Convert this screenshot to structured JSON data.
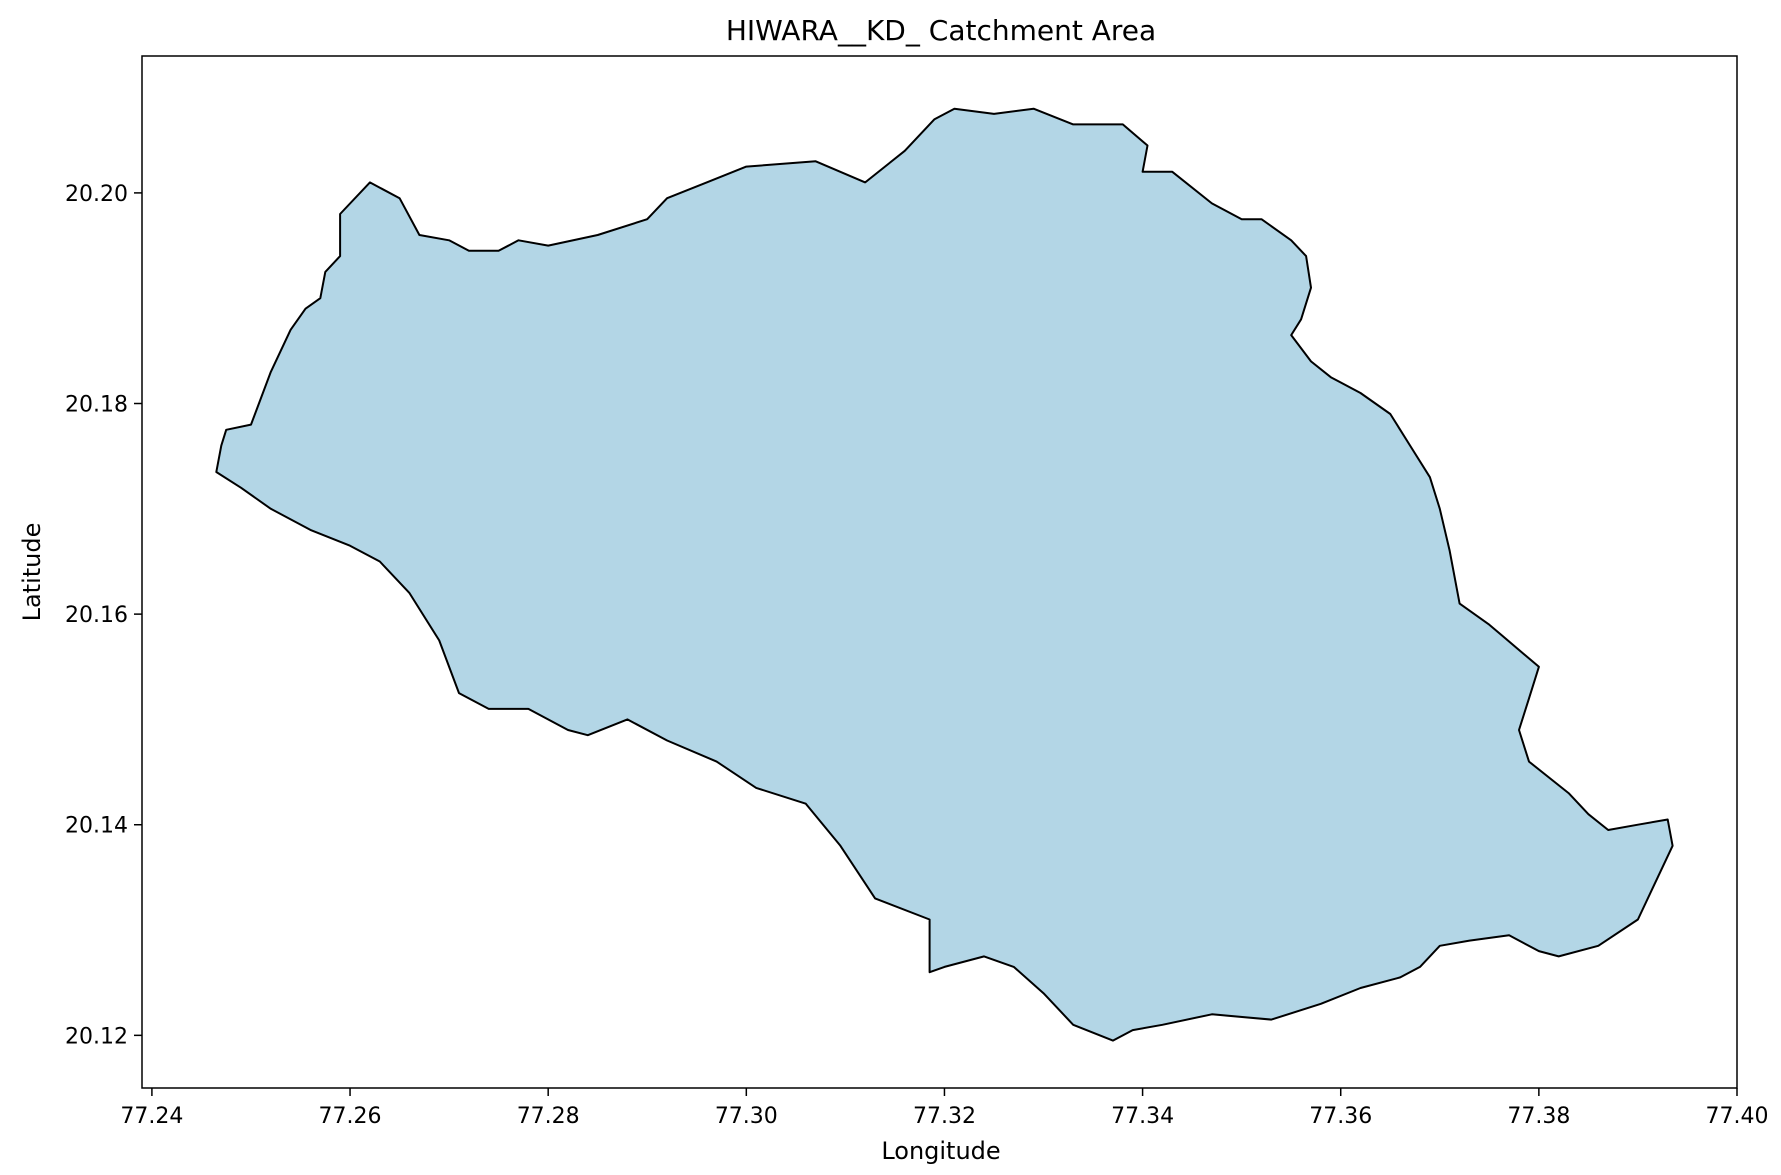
{
  "chart_data": {
    "type": "area",
    "title": "HIWARA__KD_ Catchment Area",
    "xlabel": "Longitude",
    "ylabel": "Latitude",
    "xlim": [
      77.239,
      77.4
    ],
    "ylim": [
      20.115,
      20.213
    ],
    "x_ticks": [
      77.24,
      77.26,
      77.28,
      77.3,
      77.32,
      77.34,
      77.36,
      77.38,
      77.4
    ],
    "x_tick_labels": [
      "77.24",
      "77.26",
      "77.28",
      "77.30",
      "77.32",
      "77.34",
      "77.36",
      "77.38",
      "77.40"
    ],
    "y_ticks": [
      20.12,
      20.14,
      20.16,
      20.18,
      20.2
    ],
    "y_tick_labels": [
      "20.12",
      "20.14",
      "20.16",
      "20.18",
      "20.20"
    ],
    "grid": false,
    "fill_color": "#b3d6e6",
    "edge_color": "#000000",
    "polygon": [
      [
        77.2475,
        20.1775
      ],
      [
        77.25,
        20.178
      ],
      [
        77.252,
        20.183
      ],
      [
        77.254,
        20.187
      ],
      [
        77.2555,
        20.189
      ],
      [
        77.257,
        20.19
      ],
      [
        77.2575,
        20.1925
      ],
      [
        77.259,
        20.194
      ],
      [
        77.259,
        20.198
      ],
      [
        77.262,
        20.201
      ],
      [
        77.265,
        20.1995
      ],
      [
        77.267,
        20.196
      ],
      [
        77.27,
        20.1955
      ],
      [
        77.272,
        20.1945
      ],
      [
        77.275,
        20.1945
      ],
      [
        77.277,
        20.1955
      ],
      [
        77.28,
        20.195
      ],
      [
        77.285,
        20.196
      ],
      [
        77.29,
        20.1975
      ],
      [
        77.292,
        20.1995
      ],
      [
        77.296,
        20.201
      ],
      [
        77.3,
        20.2025
      ],
      [
        77.307,
        20.203
      ],
      [
        77.312,
        20.201
      ],
      [
        77.316,
        20.204
      ],
      [
        77.319,
        20.207
      ],
      [
        77.321,
        20.208
      ],
      [
        77.325,
        20.2075
      ],
      [
        77.329,
        20.208
      ],
      [
        77.333,
        20.2065
      ],
      [
        77.338,
        20.2065
      ],
      [
        77.3405,
        20.2045
      ],
      [
        77.34,
        20.202
      ],
      [
        77.343,
        20.202
      ],
      [
        77.347,
        20.199
      ],
      [
        77.35,
        20.1975
      ],
      [
        77.352,
        20.1975
      ],
      [
        77.355,
        20.1955
      ],
      [
        77.3565,
        20.194
      ],
      [
        77.357,
        20.191
      ],
      [
        77.356,
        20.188
      ],
      [
        77.355,
        20.1865
      ],
      [
        77.357,
        20.184
      ],
      [
        77.359,
        20.1825
      ],
      [
        77.362,
        20.181
      ],
      [
        77.365,
        20.179
      ],
      [
        77.367,
        20.176
      ],
      [
        77.369,
        20.173
      ],
      [
        77.37,
        20.17
      ],
      [
        77.371,
        20.166
      ],
      [
        77.372,
        20.161
      ],
      [
        77.375,
        20.159
      ],
      [
        77.38,
        20.155
      ],
      [
        77.379,
        20.152
      ],
      [
        77.378,
        20.149
      ],
      [
        77.379,
        20.146
      ],
      [
        77.383,
        20.143
      ],
      [
        77.385,
        20.141
      ],
      [
        77.387,
        20.1395
      ],
      [
        77.39,
        20.14
      ],
      [
        77.393,
        20.1405
      ],
      [
        77.3935,
        20.138
      ],
      [
        77.392,
        20.135
      ],
      [
        77.39,
        20.131
      ],
      [
        77.386,
        20.1285
      ],
      [
        77.382,
        20.1275
      ],
      [
        77.38,
        20.128
      ],
      [
        77.377,
        20.1295
      ],
      [
        77.373,
        20.129
      ],
      [
        77.37,
        20.1285
      ],
      [
        77.368,
        20.1265
      ],
      [
        77.366,
        20.1255
      ],
      [
        77.362,
        20.1245
      ],
      [
        77.358,
        20.123
      ],
      [
        77.353,
        20.1215
      ],
      [
        77.347,
        20.122
      ],
      [
        77.342,
        20.121
      ],
      [
        77.339,
        20.1205
      ],
      [
        77.337,
        20.1195
      ],
      [
        77.333,
        20.121
      ],
      [
        77.33,
        20.124
      ],
      [
        77.327,
        20.1265
      ],
      [
        77.324,
        20.1275
      ],
      [
        77.32,
        20.1265
      ],
      [
        77.3185,
        20.126
      ],
      [
        77.3185,
        20.131
      ],
      [
        77.313,
        20.133
      ],
      [
        77.3095,
        20.138
      ],
      [
        77.306,
        20.142
      ],
      [
        77.301,
        20.1435
      ],
      [
        77.297,
        20.146
      ],
      [
        77.292,
        20.148
      ],
      [
        77.288,
        20.15
      ],
      [
        77.284,
        20.1485
      ],
      [
        77.282,
        20.149
      ],
      [
        77.278,
        20.151
      ],
      [
        77.274,
        20.151
      ],
      [
        77.271,
        20.1525
      ],
      [
        77.269,
        20.1575
      ],
      [
        77.266,
        20.162
      ],
      [
        77.263,
        20.165
      ],
      [
        77.26,
        20.1665
      ],
      [
        77.256,
        20.168
      ],
      [
        77.252,
        20.17
      ],
      [
        77.249,
        20.172
      ],
      [
        77.2465,
        20.1735
      ],
      [
        77.247,
        20.176
      ]
    ]
  }
}
